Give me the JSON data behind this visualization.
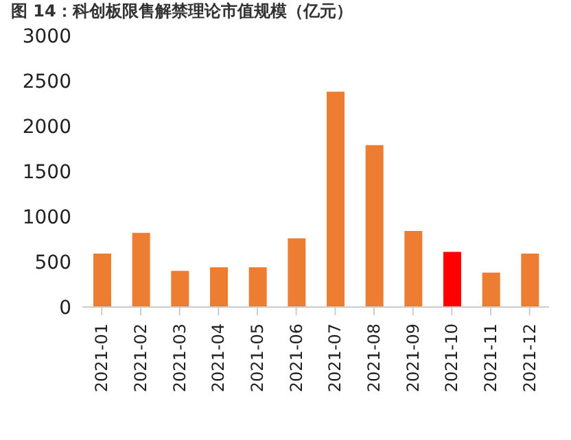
{
  "chart_data": {
    "type": "bar",
    "title": "图 14：科创板限售解禁理论市值规模（亿元）",
    "categories": [
      "2021-01",
      "2021-02",
      "2021-03",
      "2021-04",
      "2021-05",
      "2021-06",
      "2021-07",
      "2021-08",
      "2021-09",
      "2021-10",
      "2021-11",
      "2021-12"
    ],
    "values": [
      590,
      820,
      400,
      440,
      440,
      760,
      2380,
      1790,
      840,
      610,
      380,
      590
    ],
    "colors": [
      "#ed7d31",
      "#ed7d31",
      "#ed7d31",
      "#ed7d31",
      "#ed7d31",
      "#ed7d31",
      "#ed7d31",
      "#ed7d31",
      "#ed7d31",
      "#ff0000",
      "#ed7d31",
      "#ed7d31"
    ],
    "ylim": [
      0,
      3000
    ],
    "yticks": [
      0,
      500,
      1000,
      1500,
      2000,
      2500,
      3000
    ],
    "grid": false,
    "legend": false
  }
}
